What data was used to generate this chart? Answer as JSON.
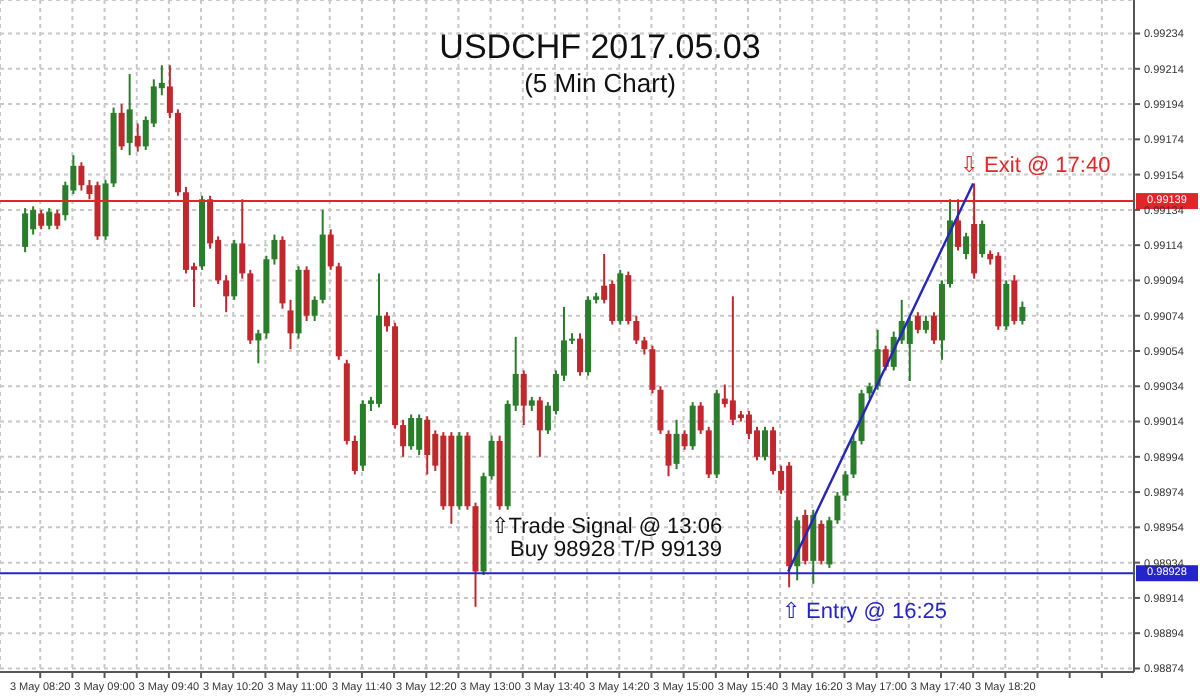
{
  "chart_data": {
    "type": "candlestick",
    "title": "USDCHF 2017.05.03",
    "subtitle": "(5 Min Chart)",
    "xlim": [
      "2017-05-03T07:55",
      "2017-05-03T19:40"
    ],
    "xticks": [
      {
        "value": "2017-05-03T08:20",
        "label": "3 May 08:20"
      },
      {
        "value": "2017-05-03T08:40",
        "label": null
      },
      {
        "value": "2017-05-03T09:00",
        "label": "3 May 09:00"
      },
      {
        "value": "2017-05-03T09:20",
        "label": null
      },
      {
        "value": "2017-05-03T09:40",
        "label": "3 May 09:40"
      },
      {
        "value": "2017-05-03T10:00",
        "label": null
      },
      {
        "value": "2017-05-03T10:20",
        "label": "3 May 10:20"
      },
      {
        "value": "2017-05-03T10:40",
        "label": null
      },
      {
        "value": "2017-05-03T11:00",
        "label": "3 May 11:00"
      },
      {
        "value": "2017-05-03T11:20",
        "label": null
      },
      {
        "value": "2017-05-03T11:40",
        "label": "3 May 11:40"
      },
      {
        "value": "2017-05-03T12:00",
        "label": null
      },
      {
        "value": "2017-05-03T12:20",
        "label": "3 May 12:20"
      },
      {
        "value": "2017-05-03T12:40",
        "label": null
      },
      {
        "value": "2017-05-03T13:00",
        "label": "3 May 13:00"
      },
      {
        "value": "2017-05-03T13:20",
        "label": null
      },
      {
        "value": "2017-05-03T13:40",
        "label": "3 May 13:40"
      },
      {
        "value": "2017-05-03T14:00",
        "label": null
      },
      {
        "value": "2017-05-03T14:20",
        "label": "3 May 14:20"
      },
      {
        "value": "2017-05-03T14:40",
        "label": null
      },
      {
        "value": "2017-05-03T15:00",
        "label": "3 May 15:00"
      },
      {
        "value": "2017-05-03T15:20",
        "label": null
      },
      {
        "value": "2017-05-03T15:40",
        "label": "3 May 15:40"
      },
      {
        "value": "2017-05-03T16:00",
        "label": null
      },
      {
        "value": "2017-05-03T16:20",
        "label": "3 May 16:20"
      },
      {
        "value": "2017-05-03T16:40",
        "label": null
      },
      {
        "value": "2017-05-03T17:00",
        "label": "3 May 17:00"
      },
      {
        "value": "2017-05-03T17:20",
        "label": null
      },
      {
        "value": "2017-05-03T17:40",
        "label": "3 May 17:40"
      },
      {
        "value": "2017-05-03T18:00",
        "label": null
      },
      {
        "value": "2017-05-03T18:20",
        "label": "3 May 18:20"
      },
      {
        "value": "2017-05-03T18:40",
        "label": null
      },
      {
        "value": "2017-05-03T19:00",
        "label": null
      },
      {
        "value": "2017-05-03T19:20",
        "label": null
      }
    ],
    "ylim": [
      0.98872,
      0.99253
    ],
    "yticks": [
      0.98874,
      0.98894,
      0.98914,
      0.98934,
      0.98954,
      0.98974,
      0.98994,
      0.99014,
      0.99034,
      0.99054,
      0.99074,
      0.99094,
      0.99114,
      0.99134,
      0.99154,
      0.99174,
      0.99194,
      0.99214,
      0.99234
    ],
    "grid": true,
    "ref_lines": [
      {
        "axis": "y",
        "value": 0.99139,
        "label": "0.99139",
        "color": "#e0262b"
      },
      {
        "axis": "y",
        "value": 0.98928,
        "label": "0.98928",
        "color": "#2424c8"
      }
    ],
    "annotations": [
      {
        "text": "⇧Trade Signal @ 13:06",
        "x": "2017-05-03T13:00",
        "y": 0.98954
      },
      "Buy 98928 T/P 99139",
      "⇩ Exit @ 17:40",
      "⇧ Entry @ 16:25"
    ],
    "series": [
      {
        "x": [
          "2017-05-03T08:10",
          "2017-05-03T08:15",
          "2017-05-03T08:20",
          "2017-05-03T08:25",
          "2017-05-03T08:30",
          "2017-05-03T08:35",
          "2017-05-03T08:40",
          "2017-05-03T08:45",
          "2017-05-03T08:50",
          "2017-05-03T08:55",
          "2017-05-03T09:00",
          "2017-05-03T09:05",
          "2017-05-03T09:10",
          "2017-05-03T09:15",
          "2017-05-03T09:20",
          "2017-05-03T09:25",
          "2017-05-03T09:30",
          "2017-05-03T09:35",
          "2017-05-03T09:40",
          "2017-05-03T09:45",
          "2017-05-03T09:50",
          "2017-05-03T09:55",
          "2017-05-03T10:00",
          "2017-05-03T10:05",
          "2017-05-03T10:10",
          "2017-05-03T10:15",
          "2017-05-03T10:20",
          "2017-05-03T10:25",
          "2017-05-03T10:30",
          "2017-05-03T10:35",
          "2017-05-03T10:40",
          "2017-05-03T10:45",
          "2017-05-03T10:50",
          "2017-05-03T10:55",
          "2017-05-03T11:00",
          "2017-05-03T11:05",
          "2017-05-03T11:10",
          "2017-05-03T11:15",
          "2017-05-03T11:20",
          "2017-05-03T11:25",
          "2017-05-03T11:30",
          "2017-05-03T11:35",
          "2017-05-03T11:40",
          "2017-05-03T11:45",
          "2017-05-03T11:50",
          "2017-05-03T11:55",
          "2017-05-03T12:00",
          "2017-05-03T12:05",
          "2017-05-03T12:10",
          "2017-05-03T12:15",
          "2017-05-03T12:20",
          "2017-05-03T12:25",
          "2017-05-03T12:30",
          "2017-05-03T12:35",
          "2017-05-03T12:40",
          "2017-05-03T12:45",
          "2017-05-03T12:50",
          "2017-05-03T12:55",
          "2017-05-03T13:00",
          "2017-05-03T13:05",
          "2017-05-03T13:10",
          "2017-05-03T13:15",
          "2017-05-03T13:20",
          "2017-05-03T13:25",
          "2017-05-03T13:30",
          "2017-05-03T13:35",
          "2017-05-03T13:40",
          "2017-05-03T13:45",
          "2017-05-03T13:50",
          "2017-05-03T13:55",
          "2017-05-03T14:00",
          "2017-05-03T14:05",
          "2017-05-03T14:10",
          "2017-05-03T14:15",
          "2017-05-03T14:20",
          "2017-05-03T14:25",
          "2017-05-03T14:30",
          "2017-05-03T14:35",
          "2017-05-03T14:40",
          "2017-05-03T14:45",
          "2017-05-03T14:50",
          "2017-05-03T14:55",
          "2017-05-03T15:00",
          "2017-05-03T15:05",
          "2017-05-03T15:10",
          "2017-05-03T15:15",
          "2017-05-03T15:20",
          "2017-05-03T15:25",
          "2017-05-03T15:30",
          "2017-05-03T15:35",
          "2017-05-03T15:40",
          "2017-05-03T15:45",
          "2017-05-03T15:50",
          "2017-05-03T15:55",
          "2017-05-03T16:00",
          "2017-05-03T16:05",
          "2017-05-03T16:10",
          "2017-05-03T16:15",
          "2017-05-03T16:20",
          "2017-05-03T16:25",
          "2017-05-03T16:30",
          "2017-05-03T16:35",
          "2017-05-03T16:40",
          "2017-05-03T16:45",
          "2017-05-03T16:50",
          "2017-05-03T16:55",
          "2017-05-03T17:00",
          "2017-05-03T17:05",
          "2017-05-03T17:10",
          "2017-05-03T17:15",
          "2017-05-03T17:20",
          "2017-05-03T17:25",
          "2017-05-03T17:30",
          "2017-05-03T17:35",
          "2017-05-03T17:40",
          "2017-05-03T17:45",
          "2017-05-03T17:50",
          "2017-05-03T17:55",
          "2017-05-03T18:00",
          "2017-05-03T18:05",
          "2017-05-03T18:10",
          "2017-05-03T18:15",
          "2017-05-03T18:20",
          "2017-05-03T18:25",
          "2017-05-03T18:30"
        ],
        "ohlc": [
          [
            0.99113,
            0.99135,
            0.9911,
            0.99132
          ],
          [
            0.99123,
            0.99136,
            0.9912,
            0.99134
          ],
          [
            0.99132,
            0.99134,
            0.99123,
            0.99125
          ],
          [
            0.99125,
            0.99135,
            0.99123,
            0.99133
          ],
          [
            0.99132,
            0.99134,
            0.99123,
            0.99125
          ],
          [
            0.99131,
            0.9915,
            0.99128,
            0.99148
          ],
          [
            0.99145,
            0.99165,
            0.99143,
            0.99159
          ],
          [
            0.99159,
            0.99161,
            0.99145,
            0.99148
          ],
          [
            0.99148,
            0.99151,
            0.9914,
            0.99143
          ],
          [
            0.99148,
            0.9915,
            0.99117,
            0.99119
          ],
          [
            0.99119,
            0.99151,
            0.99117,
            0.99149
          ],
          [
            0.99149,
            0.99192,
            0.99147,
            0.99189
          ],
          [
            0.99189,
            0.99194,
            0.99168,
            0.9917
          ],
          [
            0.99172,
            0.99211,
            0.99165,
            0.99191
          ],
          [
            0.99176,
            0.99183,
            0.99167,
            0.9917
          ],
          [
            0.9917,
            0.99187,
            0.99168,
            0.99185
          ],
          [
            0.99183,
            0.99208,
            0.99181,
            0.99204
          ],
          [
            0.99203,
            0.99216,
            0.99199,
            0.99206
          ],
          [
            0.99204,
            0.99216,
            0.99186,
            0.99189
          ],
          [
            0.99189,
            0.99191,
            0.99142,
            0.99144
          ],
          [
            0.99144,
            0.99147,
            0.99098,
            0.991
          ],
          [
            0.99102,
            0.99104,
            0.99079,
            0.991
          ],
          [
            0.99102,
            0.99142,
            0.991,
            0.9914
          ],
          [
            0.9914,
            0.99142,
            0.99112,
            0.99115
          ],
          [
            0.99117,
            0.99119,
            0.99092,
            0.99094
          ],
          [
            0.99094,
            0.99097,
            0.99076,
            0.99085
          ],
          [
            0.99085,
            0.99117,
            0.99083,
            0.99115
          ],
          [
            0.99115,
            0.9914,
            0.99095,
            0.99098
          ],
          [
            0.99098,
            0.991,
            0.99058,
            0.9906
          ],
          [
            0.9906,
            0.99066,
            0.99047,
            0.99064
          ],
          [
            0.99064,
            0.99108,
            0.99061,
            0.99106
          ],
          [
            0.99106,
            0.9912,
            0.99103,
            0.99117
          ],
          [
            0.99117,
            0.99119,
            0.99078,
            0.99081
          ],
          [
            0.99077,
            0.99083,
            0.99055,
            0.99064
          ],
          [
            0.99064,
            0.99102,
            0.99061,
            0.991
          ],
          [
            0.991,
            0.99102,
            0.99071,
            0.99074
          ],
          [
            0.99074,
            0.99085,
            0.99071,
            0.99083
          ],
          [
            0.99083,
            0.99134,
            0.99081,
            0.9912
          ],
          [
            0.9912,
            0.99123,
            0.991,
            0.99102
          ],
          [
            0.99102,
            0.99104,
            0.99049,
            0.99051
          ],
          [
            0.99047,
            0.99049,
            0.99001,
            0.99003
          ],
          [
            0.99003,
            0.99006,
            0.98984,
            0.98986
          ],
          [
            0.98989,
            0.99026,
            0.98986,
            0.99024
          ],
          [
            0.99024,
            0.99028,
            0.9902,
            0.99026
          ],
          [
            0.99024,
            0.99098,
            0.99022,
            0.99074
          ],
          [
            0.99074,
            0.99076,
            0.99065,
            0.99068
          ],
          [
            0.99068,
            0.9907,
            0.9901,
            0.99012
          ],
          [
            0.99012,
            0.99015,
            0.98994,
            0.99
          ],
          [
            0.99,
            0.99018,
            0.98998,
            0.99016
          ],
          [
            0.98998,
            0.99018,
            0.98995,
            0.99016
          ],
          [
            0.99015,
            0.99017,
            0.98984,
            0.98995
          ],
          [
            0.99007,
            0.99009,
            0.98986,
            0.98989
          ],
          [
            0.99006,
            0.99008,
            0.98964,
            0.98966
          ],
          [
            0.99006,
            0.99008,
            0.98956,
            0.98966
          ],
          [
            0.98966,
            0.99008,
            0.98964,
            0.99006
          ],
          [
            0.99006,
            0.99008,
            0.98964,
            0.98966
          ],
          [
            0.98966,
            0.98968,
            0.98909,
            0.98929
          ],
          [
            0.98929,
            0.98985,
            0.98927,
            0.98983
          ],
          [
            0.98983,
            0.99006,
            0.98981,
            0.99003
          ],
          [
            0.99003,
            0.99006,
            0.98964,
            0.98966
          ],
          [
            0.98966,
            0.99026,
            0.98964,
            0.99024
          ],
          [
            0.99023,
            0.99062,
            0.9902,
            0.99041
          ],
          [
            0.99041,
            0.99043,
            0.99012,
            0.99023
          ],
          [
            0.99023,
            0.99028,
            0.9902,
            0.99026
          ],
          [
            0.99026,
            0.99028,
            0.98994,
            0.99009
          ],
          [
            0.99009,
            0.99025,
            0.99007,
            0.99023
          ],
          [
            0.9902,
            0.99043,
            0.99018,
            0.99041
          ],
          [
            0.9904,
            0.99079,
            0.99037,
            0.9906
          ],
          [
            0.9906,
            0.99064,
            0.99058,
            0.99061
          ],
          [
            0.99061,
            0.99064,
            0.9904,
            0.99042
          ],
          [
            0.99042,
            0.99085,
            0.9904,
            0.99083
          ],
          [
            0.99083,
            0.99087,
            0.99081,
            0.99085
          ],
          [
            0.99091,
            0.99109,
            0.99081,
            0.99083
          ],
          [
            0.99092,
            0.99094,
            0.99069,
            0.99071
          ],
          [
            0.99071,
            0.991,
            0.99069,
            0.99098
          ],
          [
            0.99097,
            0.99099,
            0.99069,
            0.99071
          ],
          [
            0.99071,
            0.99074,
            0.99058,
            0.9906
          ],
          [
            0.9906,
            0.99062,
            0.99052,
            0.99055
          ],
          [
            0.99055,
            0.99057,
            0.9903,
            0.99032
          ],
          [
            0.99032,
            0.99034,
            0.99007,
            0.99009
          ],
          [
            0.99007,
            0.99009,
            0.98983,
            0.98989
          ],
          [
            0.9899,
            0.99015,
            0.98987,
            0.99007
          ],
          [
            0.99007,
            0.99009,
            0.98998,
            0.99
          ],
          [
            0.99,
            0.99025,
            0.98998,
            0.99023
          ],
          [
            0.99023,
            0.99025,
            0.99007,
            0.99009
          ],
          [
            0.99009,
            0.99011,
            0.98982,
            0.98984
          ],
          [
            0.98984,
            0.99032,
            0.98982,
            0.9903
          ],
          [
            0.99027,
            0.99035,
            0.99022,
            0.99024
          ],
          [
            0.99026,
            0.99085,
            0.99012,
            0.99015
          ],
          [
            0.99018,
            0.9902,
            0.99014,
            0.99016
          ],
          [
            0.99018,
            0.9902,
            0.99004,
            0.99007
          ],
          [
            0.99009,
            0.99011,
            0.98992,
            0.98994
          ],
          [
            0.98994,
            0.99011,
            0.98992,
            0.99009
          ],
          [
            0.99009,
            0.99011,
            0.98984,
            0.98986
          ],
          [
            0.98986,
            0.98989,
            0.98973,
            0.98975
          ],
          [
            0.98989,
            0.98991,
            0.9892,
            0.98932
          ],
          [
            0.98932,
            0.9896,
            0.98924,
            0.98958
          ],
          [
            0.98961,
            0.98964,
            0.98933,
            0.98935
          ],
          [
            0.98935,
            0.98964,
            0.98922,
            0.98961
          ],
          [
            0.98956,
            0.98958,
            0.98933,
            0.98935
          ],
          [
            0.98933,
            0.9896,
            0.98931,
            0.98958
          ],
          [
            0.98958,
            0.98974,
            0.98956,
            0.98972
          ],
          [
            0.98972,
            0.98986,
            0.98969,
            0.98984
          ],
          [
            0.98984,
            0.99006,
            0.98982,
            0.99003
          ],
          [
            0.99003,
            0.99032,
            0.99001,
            0.9903
          ],
          [
            0.9903,
            0.99036,
            0.99027,
            0.99034
          ],
          [
            0.99034,
            0.99066,
            0.99032,
            0.99055
          ],
          [
            0.99055,
            0.99057,
            0.99043,
            0.99045
          ],
          [
            0.99045,
            0.99065,
            0.99043,
            0.99062
          ],
          [
            0.9906,
            0.99083,
            0.99058,
            0.99071
          ],
          [
            0.99058,
            0.99074,
            0.99037,
            0.99071
          ],
          [
            0.99074,
            0.99076,
            0.99064,
            0.99066
          ],
          [
            0.99066,
            0.99074,
            0.99064,
            0.99071
          ],
          [
            0.99074,
            0.99076,
            0.99058,
            0.9906
          ],
          [
            0.9906,
            0.99094,
            0.99049,
            0.99092
          ],
          [
            0.99092,
            0.9914,
            0.9909,
            0.99128
          ],
          [
            0.99128,
            0.9914,
            0.99111,
            0.99113
          ],
          [
            0.99109,
            0.99121,
            0.99106,
            0.99119
          ],
          [
            0.99126,
            0.99149,
            0.99095,
            0.99098
          ],
          [
            0.99109,
            0.99128,
            0.99107,
            0.99126
          ],
          [
            0.99109,
            0.99111,
            0.99103,
            0.99106
          ],
          [
            0.99108,
            0.9911,
            0.99066,
            0.99068
          ],
          [
            0.99068,
            0.99094,
            0.99066,
            0.99092
          ],
          [
            0.99094,
            0.99097,
            0.99069,
            0.99071
          ],
          [
            0.99071,
            0.99082,
            0.99069,
            0.99079
          ]
        ],
        "colors": [
          "#2a7d2a",
          "#2a7d2a",
          "#c0282d",
          "#2a7d2a",
          "#c0282d",
          "#2a7d2a",
          "#2a7d2a",
          "#c0282d",
          "#c0282d",
          "#c0282d",
          "#2a7d2a",
          "#2a7d2a",
          "#c0282d",
          "#2a7d2a",
          "#c0282d",
          "#2a7d2a",
          "#2a7d2a",
          "#2a7d2a",
          "#c0282d",
          "#c0282d",
          "#c0282d",
          "#c0282d",
          "#2a7d2a",
          "#c0282d",
          "#c0282d",
          "#c0282d",
          "#2a7d2a",
          "#c0282d",
          "#c0282d",
          "#2a7d2a",
          "#2a7d2a",
          "#2a7d2a",
          "#c0282d",
          "#c0282d",
          "#2a7d2a",
          "#c0282d",
          "#2a7d2a",
          "#2a7d2a",
          "#c0282d",
          "#c0282d",
          "#c0282d",
          "#c0282d",
          "#2a7d2a",
          "#2a7d2a",
          "#2a7d2a",
          "#c0282d",
          "#c0282d",
          "#c0282d",
          "#2a7d2a",
          "#2a7d2a",
          "#c0282d",
          "#c0282d",
          "#c0282d",
          "#c0282d",
          "#2a7d2a",
          "#c0282d",
          "#c0282d",
          "#2a7d2a",
          "#2a7d2a",
          "#c0282d",
          "#2a7d2a",
          "#2a7d2a",
          "#c0282d",
          "#2a7d2a",
          "#c0282d",
          "#2a7d2a",
          "#2a7d2a",
          "#2a7d2a",
          "#2a7d2a",
          "#c0282d",
          "#2a7d2a",
          "#2a7d2a",
          "#c0282d",
          "#c0282d",
          "#2a7d2a",
          "#c0282d",
          "#c0282d",
          "#c0282d",
          "#c0282d",
          "#c0282d",
          "#c0282d",
          "#2a7d2a",
          "#c0282d",
          "#2a7d2a",
          "#c0282d",
          "#c0282d",
          "#2a7d2a",
          "#c0282d",
          "#c0282d",
          "#c0282d",
          "#c0282d",
          "#c0282d",
          "#2a7d2a",
          "#c0282d",
          "#c0282d",
          "#c0282d",
          "#2a7d2a",
          "#c0282d",
          "#2a7d2a",
          "#c0282d",
          "#2a7d2a",
          "#2a7d2a",
          "#2a7d2a",
          "#2a7d2a",
          "#2a7d2a",
          "#2a7d2a",
          "#2a7d2a",
          "#c0282d",
          "#2a7d2a",
          "#2a7d2a",
          "#2a7d2a",
          "#c0282d",
          "#2a7d2a",
          "#c0282d",
          "#2a7d2a",
          "#2a7d2a",
          "#c0282d",
          "#2a7d2a",
          "#c0282d",
          "#2a7d2a",
          "#c0282d",
          "#c0282d",
          "#2a7d2a",
          "#c0282d",
          "#2a7d2a"
        ]
      },
      {
        "type": "line",
        "x": [
          "2017-05-03T16:05",
          "2017-05-03T18:00"
        ],
        "values": [
          0.98929,
          0.99149
        ],
        "color": "#2626b8"
      }
    ]
  }
}
